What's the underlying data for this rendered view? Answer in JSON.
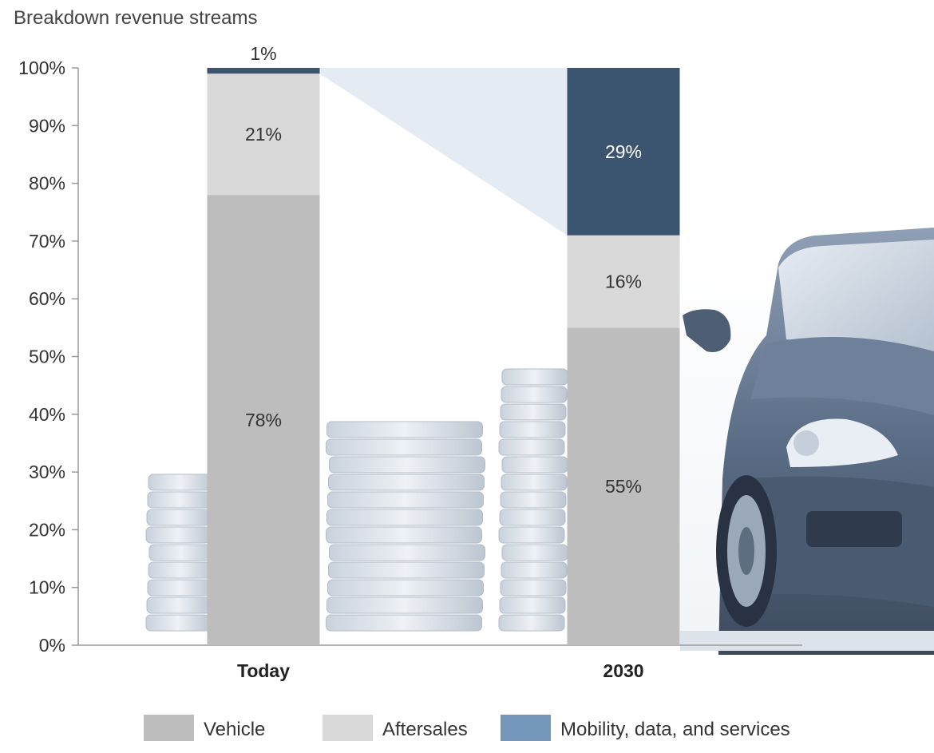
{
  "chart_data": {
    "type": "bar",
    "stacked": true,
    "title": "Breakdown revenue streams",
    "categories": [
      "Today",
      "2030"
    ],
    "series": [
      {
        "name": "Vehicle",
        "values": [
          78,
          55
        ],
        "labels": [
          "78%",
          "55%"
        ],
        "color": "#bdbdbd",
        "label_color": "#333333"
      },
      {
        "name": "Aftersales",
        "values": [
          21,
          16
        ],
        "labels": [
          "21%",
          "16%"
        ],
        "color": "#d9d9d9",
        "label_color": "#333333"
      },
      {
        "name": "Mobility, data, and services",
        "values": [
          1,
          29
        ],
        "labels": [
          "1%",
          "29%"
        ],
        "color": "#3b5470",
        "label_color": "#ffffff",
        "legend_color": "#7496ba"
      }
    ],
    "ylim": [
      0,
      100
    ],
    "yticks": [
      "0%",
      "10%",
      "20%",
      "30%",
      "40%",
      "50%",
      "60%",
      "70%",
      "80%",
      "90%",
      "100%"
    ],
    "xlabel": "",
    "ylabel": "",
    "grid": false,
    "legend_position": "bottom"
  },
  "background": {
    "items": [
      "coin-stacks",
      "car"
    ]
  }
}
